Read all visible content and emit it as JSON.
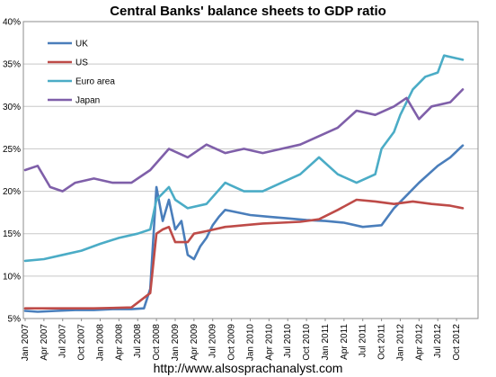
{
  "chart_data": {
    "type": "line",
    "title": "Central Banks' balance sheets to GDP ratio",
    "source_note": "http://www.alsosprachanalyst.com",
    "y_tick_labels": [
      "5%",
      "10%",
      "15%",
      "20%",
      "25%",
      "30%",
      "35%",
      "40%"
    ],
    "y_ticks": [
      5,
      10,
      15,
      20,
      25,
      30,
      35,
      40
    ],
    "ylim": [
      5,
      40
    ],
    "x_tick_labels": [
      "Jan 2007",
      "Apr 2007",
      "Jul 2007",
      "Oct 2007",
      "Jan 2008",
      "Apr 2008",
      "Jul 2008",
      "Oct 2008",
      "Jan 2009",
      "Apr 2009",
      "Jul 2009",
      "Oct 2009",
      "Jan 2010",
      "Apr 2010",
      "Jul 2010",
      "Oct 2010",
      "Jan 2011",
      "Apr 2011",
      "Jul 2011",
      "Oct 2011",
      "Jan 2012",
      "Apr 2012",
      "Jul 2012",
      "Oct 2012"
    ],
    "x_range": [
      "Jan 2007",
      "Dec 2012"
    ],
    "grid": "horizontal",
    "legend_position": "top-left",
    "series": [
      {
        "name": "UK",
        "color": "#4a7ebb",
        "points": [
          [
            "2007-01",
            5.9
          ],
          [
            "2007-03",
            5.8
          ],
          [
            "2007-06",
            5.9
          ],
          [
            "2007-09",
            6.0
          ],
          [
            "2007-12",
            6.0
          ],
          [
            "2008-03",
            6.1
          ],
          [
            "2008-06",
            6.1
          ],
          [
            "2008-08",
            6.2
          ],
          [
            "2008-09",
            8.5
          ],
          [
            "2008-10",
            20.5
          ],
          [
            "2008-11",
            16.5
          ],
          [
            "2008-12",
            19.0
          ],
          [
            "2009-01",
            15.5
          ],
          [
            "2009-02",
            16.5
          ],
          [
            "2009-03",
            12.5
          ],
          [
            "2009-04",
            12.0
          ],
          [
            "2009-05",
            13.5
          ],
          [
            "2009-06",
            14.5
          ],
          [
            "2009-07",
            16.0
          ],
          [
            "2009-08",
            17.0
          ],
          [
            "2009-09",
            17.8
          ],
          [
            "2009-11",
            17.5
          ],
          [
            "2010-01",
            17.2
          ],
          [
            "2010-04",
            17.0
          ],
          [
            "2010-07",
            16.8
          ],
          [
            "2010-10",
            16.6
          ],
          [
            "2011-01",
            16.5
          ],
          [
            "2011-04",
            16.3
          ],
          [
            "2011-07",
            15.8
          ],
          [
            "2011-10",
            16.0
          ],
          [
            "2011-12",
            18.0
          ],
          [
            "2012-02",
            19.5
          ],
          [
            "2012-04",
            21.0
          ],
          [
            "2012-07",
            23.0
          ],
          [
            "2012-09",
            24.0
          ],
          [
            "2012-11",
            25.4
          ]
        ]
      },
      {
        "name": "US",
        "color": "#be4b48",
        "points": [
          [
            "2007-01",
            6.2
          ],
          [
            "2007-06",
            6.2
          ],
          [
            "2007-12",
            6.2
          ],
          [
            "2008-06",
            6.3
          ],
          [
            "2008-09",
            8.0
          ],
          [
            "2008-10",
            15.0
          ],
          [
            "2008-11",
            15.5
          ],
          [
            "2008-12",
            15.8
          ],
          [
            "2009-01",
            14.0
          ],
          [
            "2009-03",
            14.0
          ],
          [
            "2009-04",
            15.0
          ],
          [
            "2009-06",
            15.3
          ],
          [
            "2009-09",
            15.8
          ],
          [
            "2009-12",
            16.0
          ],
          [
            "2010-03",
            16.2
          ],
          [
            "2010-06",
            16.3
          ],
          [
            "2010-09",
            16.4
          ],
          [
            "2010-12",
            16.7
          ],
          [
            "2011-03",
            17.8
          ],
          [
            "2011-06",
            19.0
          ],
          [
            "2011-09",
            18.8
          ],
          [
            "2011-12",
            18.5
          ],
          [
            "2012-03",
            18.8
          ],
          [
            "2012-06",
            18.5
          ],
          [
            "2012-09",
            18.3
          ],
          [
            "2012-11",
            18.0
          ]
        ]
      },
      {
        "name": "Euro area",
        "color": "#4bacc6",
        "points": [
          [
            "2007-01",
            11.8
          ],
          [
            "2007-04",
            12.0
          ],
          [
            "2007-07",
            12.5
          ],
          [
            "2007-10",
            13.0
          ],
          [
            "2008-01",
            13.8
          ],
          [
            "2008-04",
            14.5
          ],
          [
            "2008-07",
            15.0
          ],
          [
            "2008-09",
            15.5
          ],
          [
            "2008-10",
            19.0
          ],
          [
            "2008-12",
            20.5
          ],
          [
            "2009-01",
            19.0
          ],
          [
            "2009-03",
            18.0
          ],
          [
            "2009-06",
            18.5
          ],
          [
            "2009-09",
            21.0
          ],
          [
            "2009-12",
            20.0
          ],
          [
            "2010-03",
            20.0
          ],
          [
            "2010-06",
            21.0
          ],
          [
            "2010-09",
            22.0
          ],
          [
            "2010-12",
            24.0
          ],
          [
            "2011-03",
            22.0
          ],
          [
            "2011-06",
            21.0
          ],
          [
            "2011-09",
            22.0
          ],
          [
            "2011-10",
            25.0
          ],
          [
            "2011-12",
            27.0
          ],
          [
            "2012-01",
            29.0
          ],
          [
            "2012-03",
            32.0
          ],
          [
            "2012-05",
            33.5
          ],
          [
            "2012-07",
            34.0
          ],
          [
            "2012-08",
            36.0
          ],
          [
            "2012-11",
            35.5
          ]
        ]
      },
      {
        "name": "Japan",
        "color": "#7f5fa9",
        "points": [
          [
            "2007-01",
            22.5
          ],
          [
            "2007-03",
            23.0
          ],
          [
            "2007-05",
            20.5
          ],
          [
            "2007-07",
            20.0
          ],
          [
            "2007-09",
            21.0
          ],
          [
            "2007-12",
            21.5
          ],
          [
            "2008-03",
            21.0
          ],
          [
            "2008-06",
            21.0
          ],
          [
            "2008-09",
            22.5
          ],
          [
            "2008-12",
            25.0
          ],
          [
            "2009-03",
            24.0
          ],
          [
            "2009-06",
            25.5
          ],
          [
            "2009-09",
            24.5
          ],
          [
            "2009-12",
            25.0
          ],
          [
            "2010-03",
            24.5
          ],
          [
            "2010-06",
            25.0
          ],
          [
            "2010-09",
            25.5
          ],
          [
            "2010-12",
            26.5
          ],
          [
            "2011-03",
            27.5
          ],
          [
            "2011-06",
            29.5
          ],
          [
            "2011-09",
            29.0
          ],
          [
            "2011-12",
            30.0
          ],
          [
            "2012-02",
            31.0
          ],
          [
            "2012-04",
            28.5
          ],
          [
            "2012-06",
            30.0
          ],
          [
            "2012-09",
            30.5
          ],
          [
            "2012-11",
            32.0
          ]
        ]
      }
    ]
  }
}
